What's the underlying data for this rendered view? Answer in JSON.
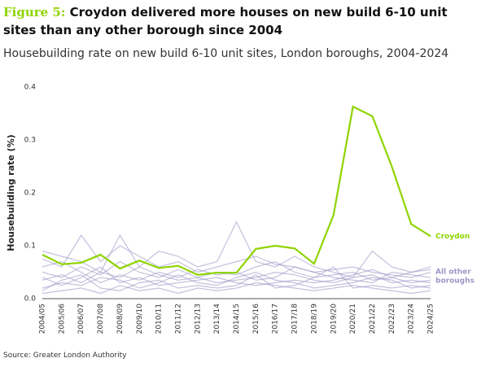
{
  "chart_data": {
    "type": "line",
    "title_prefix": "Figure 5:",
    "title": "Croydon delivered more houses on new build 6-10 unit sites than any other borough since 2004",
    "subtitle": "Housebuilding rate on new build 6-10 unit sites, London boroughs, 2004-2024",
    "y_label": "Housebuilding rate (%)",
    "source": "Source: Greater London Authority",
    "categories": [
      "2004/05",
      "2005/06",
      "2006/07",
      "2007/08",
      "2008/09",
      "2009/10",
      "2010/11",
      "2011/12",
      "2012/13",
      "2013/14",
      "2014/15",
      "2015/16",
      "2016/17",
      "2017/18",
      "2018/19",
      "2019/20",
      "2020/21",
      "2021/22",
      "2022/23",
      "2023/24",
      "2024/25"
    ],
    "ylim": [
      0,
      0.4
    ],
    "yticks": [
      {
        "value": 0,
        "label": "0.0"
      },
      0.1,
      0.2,
      0.3,
      0.4
    ],
    "series": [
      {
        "name": "Croydon",
        "color": "#8fd400",
        "values": [
          0.083,
          0.065,
          0.068,
          0.083,
          0.057,
          0.072,
          0.058,
          0.062,
          0.045,
          0.049,
          0.049,
          0.094,
          0.1,
          0.095,
          0.066,
          0.158,
          0.363,
          0.345,
          0.25,
          0.141,
          0.118
        ]
      }
    ],
    "others": {
      "name": "All other boroughs",
      "color": "#9c97c6",
      "values": [
        [
          0.02,
          0.03,
          0.025,
          0.04,
          0.035,
          0.02,
          0.03,
          0.045,
          0.03,
          0.025,
          0.04,
          0.05,
          0.035,
          0.03,
          0.02,
          0.025,
          0.03,
          0.04,
          0.035,
          0.02,
          0.025
        ],
        [
          0.05,
          0.04,
          0.06,
          0.045,
          0.07,
          0.05,
          0.04,
          0.055,
          0.04,
          0.05,
          0.045,
          0.06,
          0.07,
          0.05,
          0.04,
          0.045,
          0.05,
          0.035,
          0.04,
          0.03,
          0.035
        ],
        [
          0.01,
          0.015,
          0.02,
          0.01,
          0.025,
          0.015,
          0.02,
          0.01,
          0.02,
          0.015,
          0.02,
          0.03,
          0.025,
          0.02,
          0.015,
          0.02,
          0.025,
          0.02,
          0.015,
          0.01,
          0.015
        ],
        [
          0.075,
          0.06,
          0.12,
          0.07,
          0.1,
          0.08,
          0.06,
          0.07,
          0.05,
          0.06,
          0.07,
          0.08,
          0.065,
          0.06,
          0.05,
          0.055,
          0.06,
          0.05,
          0.045,
          0.04,
          0.05
        ],
        [
          0.035,
          0.045,
          0.03,
          0.05,
          0.04,
          0.06,
          0.045,
          0.035,
          0.04,
          0.03,
          0.035,
          0.04,
          0.05,
          0.045,
          0.035,
          0.03,
          0.04,
          0.045,
          0.03,
          0.035,
          0.03
        ],
        [
          0.06,
          0.07,
          0.05,
          0.03,
          0.045,
          0.035,
          0.05,
          0.04,
          0.055,
          0.045,
          0.05,
          0.035,
          0.04,
          0.06,
          0.05,
          0.04,
          0.035,
          0.03,
          0.05,
          0.045,
          0.04
        ],
        [
          0.04,
          0.025,
          0.04,
          0.06,
          0.03,
          0.04,
          0.025,
          0.03,
          0.035,
          0.04,
          0.03,
          0.025,
          0.03,
          0.035,
          0.03,
          0.035,
          0.045,
          0.055,
          0.04,
          0.05,
          0.055
        ],
        [
          0.09,
          0.08,
          0.07,
          0.05,
          0.12,
          0.06,
          0.09,
          0.08,
          0.06,
          0.07,
          0.145,
          0.07,
          0.06,
          0.08,
          0.06,
          0.05,
          0.04,
          0.09,
          0.06,
          0.05,
          0.06
        ],
        [
          0.015,
          0.035,
          0.045,
          0.02,
          0.015,
          0.03,
          0.035,
          0.02,
          0.025,
          0.02,
          0.025,
          0.045,
          0.02,
          0.025,
          0.04,
          0.06,
          0.02,
          0.025,
          0.02,
          0.025,
          0.02
        ]
      ]
    }
  }
}
